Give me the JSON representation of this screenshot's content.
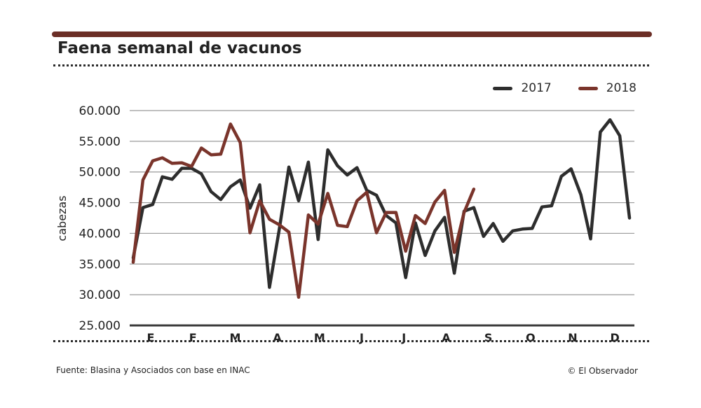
{
  "header": {
    "title": "Faena semanal de vacunos"
  },
  "footer": {
    "source": "Fuente: Blasina y Asociados con base en INAC",
    "credit": "© El Observador"
  },
  "chart_data": {
    "type": "line",
    "title": "Faena semanal de vacunos",
    "xlabel": "",
    "ylabel": "cabezas",
    "ylim": [
      25000,
      60000
    ],
    "y_ticks": [
      60000,
      55000,
      50000,
      45000,
      40000,
      35000,
      30000,
      25000
    ],
    "y_tick_labels": [
      "60.000",
      "55.000",
      "50.000",
      "45.000",
      "40.000",
      "35.000",
      "30.000",
      "25.000"
    ],
    "month_labels": [
      "E",
      "F",
      "M",
      "A",
      "M",
      "J",
      "J",
      "A",
      "S",
      "O",
      "N",
      "D"
    ],
    "grid": true,
    "legend_position": "top-right",
    "series": [
      {
        "name": "2017",
        "color": "#2d2d2d",
        "values": [
          36000,
          44200,
          44700,
          49200,
          48800,
          50600,
          50600,
          49700,
          46800,
          45500,
          47600,
          48700,
          44100,
          47900,
          31200,
          40500,
          50800,
          45300,
          51600,
          39000,
          53600,
          51000,
          49500,
          50700,
          47000,
          46200,
          42900,
          41700,
          32800,
          41700,
          36400,
          40400,
          42600,
          33500,
          43600,
          44200,
          39500,
          41600,
          38700,
          40400,
          40700,
          40800,
          44300,
          44500,
          49300,
          50500,
          46300,
          39100,
          56500,
          58500,
          55900,
          42500
        ]
      },
      {
        "name": "2018",
        "color": "#7a342b",
        "values": [
          35300,
          48700,
          51800,
          52300,
          51400,
          51500,
          50900,
          53900,
          52800,
          52900,
          57800,
          54800,
          40100,
          45300,
          42300,
          41400,
          40200,
          29600,
          43000,
          41500,
          46500,
          41300,
          41100,
          45300,
          46700,
          40100,
          43400,
          43400,
          37100,
          42900,
          41600,
          45100,
          47000,
          36900,
          43400,
          47200
        ]
      }
    ]
  }
}
